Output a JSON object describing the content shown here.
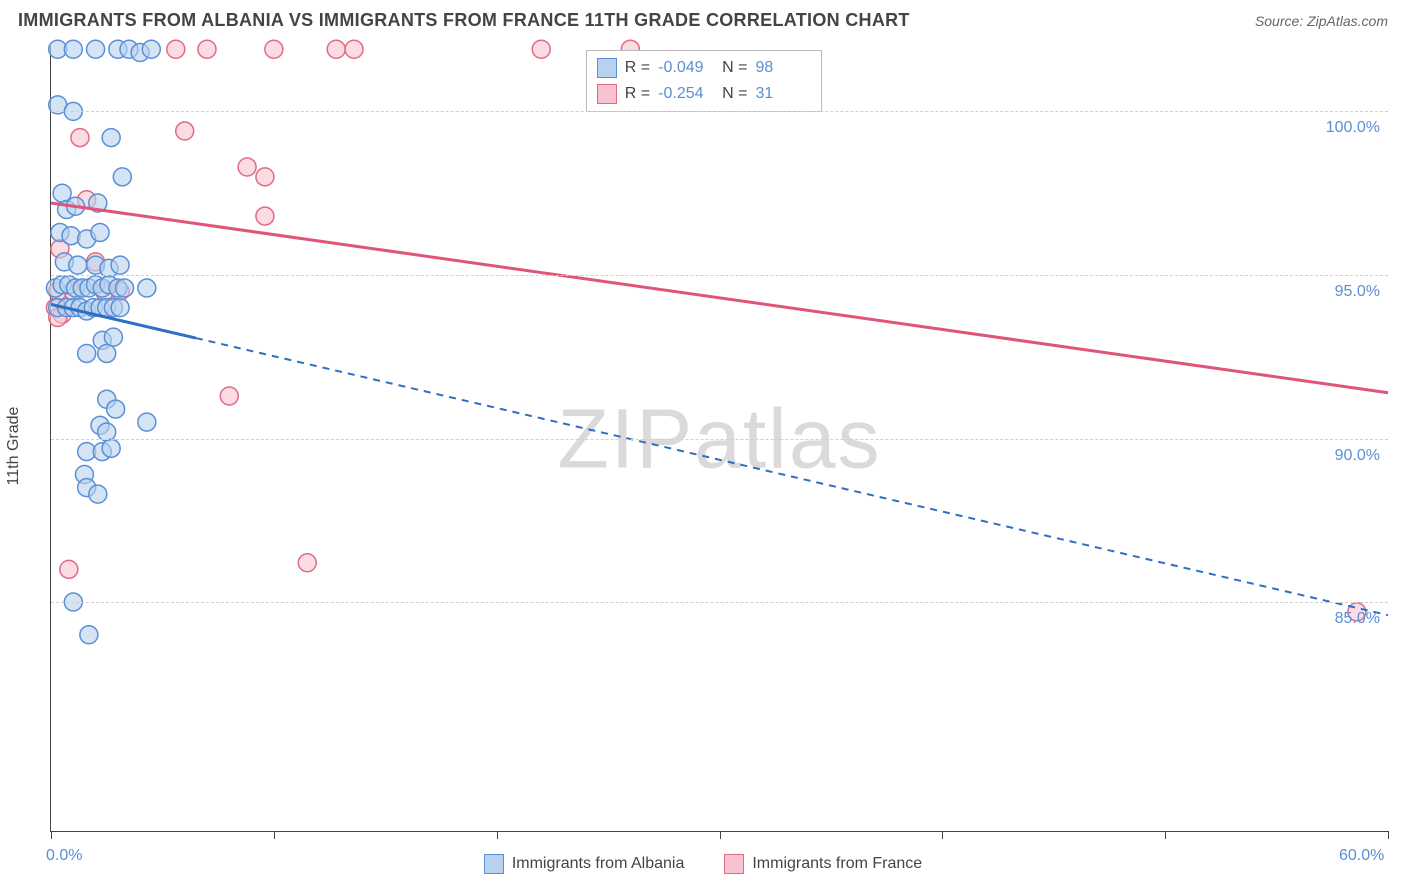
{
  "header": {
    "title": "IMMIGRANTS FROM ALBANIA VS IMMIGRANTS FROM FRANCE 11TH GRADE CORRELATION CHART",
    "source": "Source: ZipAtlas.com"
  },
  "chart": {
    "type": "scatter",
    "y_axis_label": "11th Grade",
    "xlim": [
      0,
      60
    ],
    "ylim": [
      78,
      102
    ],
    "x_ticks": [
      0,
      10,
      20,
      30,
      40,
      50,
      60
    ],
    "y_ticks": [
      85,
      90,
      95,
      100
    ],
    "y_tick_labels": [
      "85.0%",
      "90.0%",
      "95.0%",
      "100.0%"
    ],
    "x_min_label": "0.0%",
    "x_max_label": "60.0%",
    "grid_color": "#d0d0d0",
    "background_color": "#ffffff",
    "colors": {
      "albania_fill": "#b7d2ee",
      "albania_stroke": "#5a8fd6",
      "france_fill": "#f6c4ce",
      "france_stroke": "#e16a87",
      "trend_blue": "#2f6fc2",
      "trend_pink": "#e05577"
    },
    "marker_radius": 9,
    "marker_opacity": 0.6,
    "watermark": "ZIPatlas",
    "top_legend": {
      "rows": [
        {
          "swatch": "albania",
          "r_label": "R =",
          "r_value": "-0.049",
          "n_label": "N =",
          "n_value": "98"
        },
        {
          "swatch": "france",
          "r_label": "R =",
          "r_value": "-0.254",
          "n_label": "N =",
          "n_value": "31"
        }
      ]
    },
    "bottom_legend": [
      {
        "swatch": "albania",
        "label": "Immigrants from Albania"
      },
      {
        "swatch": "france",
        "label": "Immigrants from France"
      }
    ],
    "trend_lines": {
      "blue": {
        "x1": 0,
        "y1": 94.1,
        "x2": 60,
        "y2": 84.6,
        "dash_after_x": 6.5
      },
      "pink": {
        "x1": 0,
        "y1": 97.2,
        "x2": 60,
        "y2": 91.4
      }
    },
    "series": {
      "albania": [
        [
          0.3,
          101.9
        ],
        [
          1.0,
          101.9
        ],
        [
          2.0,
          101.9
        ],
        [
          3.0,
          101.9
        ],
        [
          3.5,
          101.9
        ],
        [
          4.0,
          101.8
        ],
        [
          4.5,
          101.9
        ],
        [
          0.3,
          100.2
        ],
        [
          1.0,
          100.0
        ],
        [
          2.7,
          99.2
        ],
        [
          3.2,
          98.0
        ],
        [
          0.5,
          97.5
        ],
        [
          0.7,
          97.0
        ],
        [
          1.1,
          97.1
        ],
        [
          2.1,
          97.2
        ],
        [
          0.4,
          96.3
        ],
        [
          0.9,
          96.2
        ],
        [
          1.6,
          96.1
        ],
        [
          2.2,
          96.3
        ],
        [
          0.6,
          95.4
        ],
        [
          1.2,
          95.3
        ],
        [
          2.0,
          95.3
        ],
        [
          2.6,
          95.2
        ],
        [
          3.1,
          95.3
        ],
        [
          0.2,
          94.6
        ],
        [
          0.5,
          94.7
        ],
        [
          0.8,
          94.7
        ],
        [
          1.1,
          94.6
        ],
        [
          1.4,
          94.6
        ],
        [
          1.7,
          94.6
        ],
        [
          2.0,
          94.7
        ],
        [
          2.3,
          94.6
        ],
        [
          2.6,
          94.7
        ],
        [
          3.0,
          94.6
        ],
        [
          3.3,
          94.6
        ],
        [
          4.3,
          94.6
        ],
        [
          0.3,
          94.0
        ],
        [
          0.7,
          94.0
        ],
        [
          1.0,
          94.0
        ],
        [
          1.3,
          94.0
        ],
        [
          1.6,
          93.9
        ],
        [
          1.9,
          94.0
        ],
        [
          2.2,
          94.0
        ],
        [
          2.5,
          94.0
        ],
        [
          2.8,
          94.0
        ],
        [
          3.1,
          94.0
        ],
        [
          2.3,
          93.0
        ],
        [
          2.8,
          93.1
        ],
        [
          1.6,
          92.6
        ],
        [
          2.5,
          92.6
        ],
        [
          2.5,
          91.2
        ],
        [
          2.9,
          90.9
        ],
        [
          2.2,
          90.4
        ],
        [
          2.5,
          90.2
        ],
        [
          4.3,
          90.5
        ],
        [
          1.6,
          89.6
        ],
        [
          2.3,
          89.6
        ],
        [
          2.7,
          89.7
        ],
        [
          1.5,
          88.9
        ],
        [
          1.6,
          88.5
        ],
        [
          2.1,
          88.3
        ],
        [
          1.0,
          85.0
        ],
        [
          1.7,
          84.0
        ]
      ],
      "france": [
        [
          5.6,
          101.9
        ],
        [
          7.0,
          101.9
        ],
        [
          10.0,
          101.9
        ],
        [
          12.8,
          101.9
        ],
        [
          13.6,
          101.9
        ],
        [
          22.0,
          101.9
        ],
        [
          26.0,
          101.9
        ],
        [
          1.3,
          99.2
        ],
        [
          6.0,
          99.4
        ],
        [
          8.8,
          98.3
        ],
        [
          9.6,
          98.0
        ],
        [
          1.6,
          97.3
        ],
        [
          9.6,
          96.8
        ],
        [
          0.4,
          95.8
        ],
        [
          2.0,
          95.4
        ],
        [
          0.3,
          94.5
        ],
        [
          1.0,
          94.5
        ],
        [
          2.4,
          94.5
        ],
        [
          3.1,
          94.5
        ],
        [
          0.2,
          94.0
        ],
        [
          0.5,
          93.8
        ],
        [
          0.3,
          93.7
        ],
        [
          8.0,
          91.3
        ],
        [
          11.5,
          86.2
        ],
        [
          0.8,
          86.0
        ],
        [
          58.6,
          84.7
        ]
      ]
    }
  }
}
